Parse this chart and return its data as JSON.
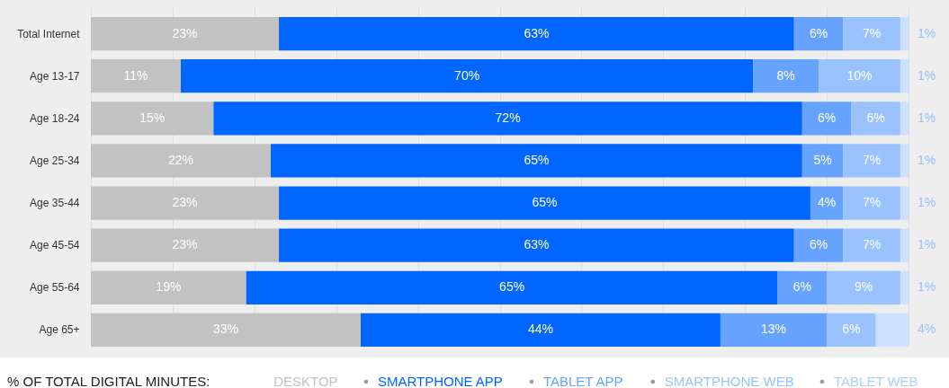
{
  "chart_data": {
    "type": "bar",
    "orientation": "horizontal",
    "stacked": true,
    "categories": [
      "Total Internet",
      "Age 13-17",
      "Age 18-24",
      "Age 25-34",
      "Age 35-44",
      "Age 45-54",
      "Age 55-64",
      "Age 65+"
    ],
    "series": [
      {
        "name": "DESKTOP",
        "color": "#c2c2c2",
        "values": [
          23,
          11,
          15,
          22,
          23,
          23,
          19,
          33
        ],
        "value_labels": [
          "23%",
          "11%",
          "15%",
          "22%",
          "23%",
          "23%",
          "19%",
          "33%"
        ]
      },
      {
        "name": "SMARTPHONE APP",
        "color": "#0066ff",
        "values": [
          63,
          70,
          72,
          65,
          65,
          63,
          65,
          44
        ],
        "value_labels": [
          "63%",
          "70%",
          "72%",
          "65%",
          "65%",
          "63%",
          "65%",
          "44%"
        ]
      },
      {
        "name": "TABLET APP",
        "color": "#66a3ff",
        "values": [
          6,
          8,
          6,
          5,
          4,
          6,
          6,
          13
        ],
        "value_labels": [
          "6%",
          "8%",
          "6%",
          "5%",
          "4%",
          "6%",
          "6%",
          "13%"
        ]
      },
      {
        "name": "SMARTPHONE WEB",
        "color": "#99c2ff",
        "values": [
          7,
          10,
          6,
          7,
          7,
          7,
          9,
          6
        ],
        "value_labels": [
          "7%",
          "10%",
          "6%",
          "7%",
          "7%",
          "7%",
          "9%",
          "6%"
        ]
      },
      {
        "name": "TABLET WEB",
        "color": "#cce0ff",
        "values": [
          1,
          1,
          1,
          1,
          1,
          1,
          1,
          4
        ],
        "value_labels": [
          "1%",
          "1%",
          "1%",
          "1%",
          "1%",
          "1%",
          "1%",
          "4%"
        ]
      }
    ],
    "xlim": [
      0,
      100
    ],
    "xticks": [
      {
        "value": 0,
        "label": null
      },
      {
        "value": 10,
        "label": null
      },
      {
        "value": 20,
        "label": null
      },
      {
        "value": 30,
        "label": null
      },
      {
        "value": 40,
        "label": null
      },
      {
        "value": 50,
        "label": null
      },
      {
        "value": 60,
        "label": null
      },
      {
        "value": 70,
        "label": null
      },
      {
        "value": 80,
        "label": null
      },
      {
        "value": 90,
        "label": null
      },
      {
        "value": 100,
        "label": null
      }
    ],
    "grid": "x",
    "tick_labels": "y",
    "legend": "bottom",
    "legend_title": "% OF TOTAL DIGITAL MINUTES:"
  }
}
